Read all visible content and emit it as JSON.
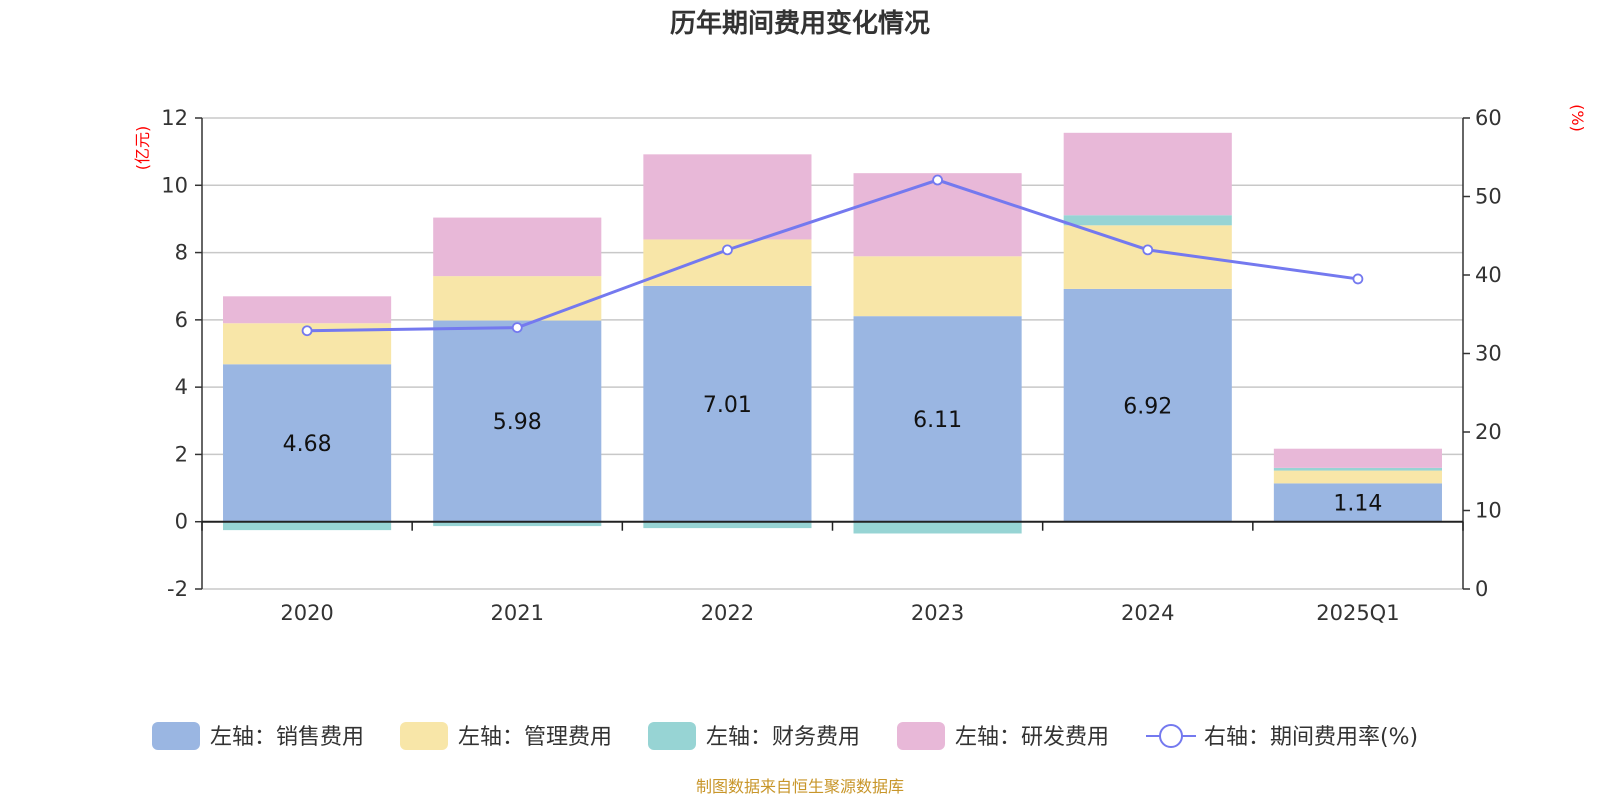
{
  "chart_data": {
    "type": "bar",
    "stacked": true,
    "title": "历年期间费用变化情况",
    "source": "制图数据来自恒生聚源数据库",
    "left_axis": {
      "unit": "(亿元)",
      "ylim": [
        -2,
        12
      ],
      "ticks": [
        -2,
        0,
        2,
        4,
        6,
        8,
        10,
        12
      ]
    },
    "right_axis": {
      "unit": "(%)",
      "ylim": [
        0,
        60
      ],
      "ticks": [
        0,
        10,
        20,
        30,
        40,
        50,
        60
      ]
    },
    "categories": [
      "2020",
      "2021",
      "2022",
      "2023",
      "2024",
      "2025Q1"
    ],
    "series": [
      {
        "name": "左轴：销售费用",
        "axis": "left",
        "kind": "bar",
        "color": "#9ab6e2",
        "values": [
          4.68,
          5.98,
          7.01,
          6.11,
          6.92,
          1.14
        ],
        "show_labels": true
      },
      {
        "name": "左轴：管理费用",
        "axis": "left",
        "kind": "bar",
        "color": "#f8e6a8",
        "values": [
          1.22,
          1.32,
          1.38,
          1.78,
          1.89,
          0.38
        ]
      },
      {
        "name": "左轴：财务费用",
        "axis": "left",
        "kind": "bar",
        "color": "#97d4d4",
        "values": [
          -0.25,
          -0.13,
          -0.19,
          -0.35,
          0.3,
          0.08
        ]
      },
      {
        "name": "左轴：研发费用",
        "axis": "left",
        "kind": "bar",
        "color": "#e8b8d8",
        "values": [
          0.8,
          1.74,
          2.53,
          2.47,
          2.45,
          0.57
        ]
      },
      {
        "name": "右轴：期间费用率(%)",
        "axis": "right",
        "kind": "line",
        "color": "#7479ef",
        "values": [
          32.9,
          33.3,
          43.2,
          52.1,
          43.2,
          39.5
        ]
      }
    ]
  }
}
